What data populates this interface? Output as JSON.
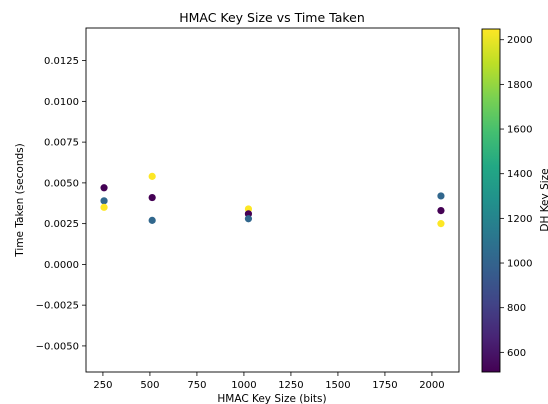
{
  "chart_data": {
    "type": "scatter",
    "title": "HMAC Key Size vs Time Taken",
    "xlabel": "HMAC Key Size (bits)",
    "ylabel": "Time Taken (seconds)",
    "xlim": [
      160,
      2144
    ],
    "ylim": [
      -0.0066,
      0.0145
    ],
    "xticks": [
      250,
      500,
      750,
      1000,
      1250,
      1500,
      1750,
      2000
    ],
    "xtick_labels": [
      "250",
      "500",
      "750",
      "1000",
      "1250",
      "1500",
      "1750",
      "2000"
    ],
    "yticks": [
      -0.005,
      -0.0025,
      0.0,
      0.0025,
      0.005,
      0.0075,
      0.01,
      0.0125
    ],
    "ytick_labels": [
      "−0.0050",
      "−0.0025",
      "0.0000",
      "0.0025",
      "0.0050",
      "0.0075",
      "0.0100",
      "0.0125"
    ],
    "grid": false,
    "colormap": "viridis",
    "colorbar": {
      "label": "DH Key Size",
      "range": [
        512,
        2048
      ],
      "ticks": [
        600,
        800,
        1000,
        1200,
        1400,
        1600,
        1800,
        2000
      ],
      "tick_labels": [
        "600",
        "800",
        "1000",
        "1200",
        "1400",
        "1600",
        "1800",
        "2000"
      ]
    },
    "points": [
      {
        "x": 256,
        "y": 0.0047,
        "c": 512
      },
      {
        "x": 256,
        "y": 0.0039,
        "c": 1024
      },
      {
        "x": 256,
        "y": 0.0035,
        "c": 2048
      },
      {
        "x": 512,
        "y": 0.0054,
        "c": 2048
      },
      {
        "x": 512,
        "y": 0.0041,
        "c": 512
      },
      {
        "x": 512,
        "y": 0.0027,
        "c": 1024
      },
      {
        "x": 1024,
        "y": 0.0034,
        "c": 2048
      },
      {
        "x": 1024,
        "y": 0.0031,
        "c": 512
      },
      {
        "x": 1024,
        "y": 0.0028,
        "c": 1024
      },
      {
        "x": 2048,
        "y": 0.0042,
        "c": 1024
      },
      {
        "x": 2048,
        "y": 0.0033,
        "c": 512
      },
      {
        "x": 2048,
        "y": 0.0025,
        "c": 2048
      }
    ]
  }
}
